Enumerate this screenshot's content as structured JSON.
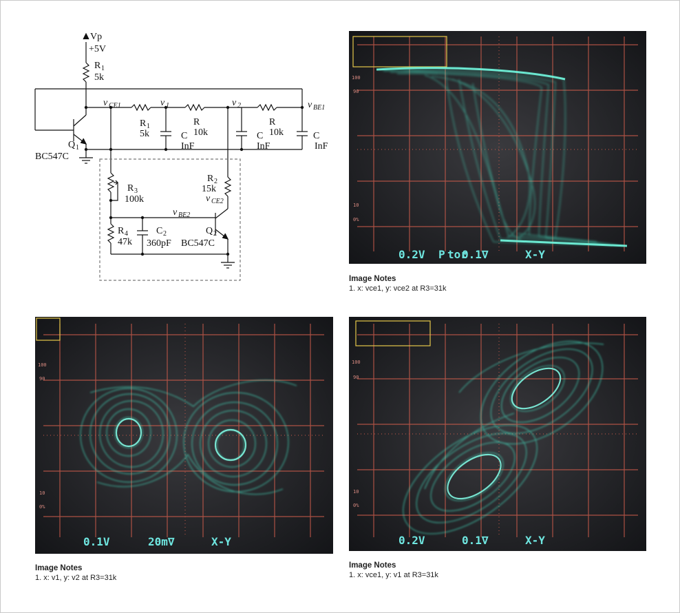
{
  "schematic": {
    "supply_label": "Vp",
    "supply_value": "+5V",
    "r1_top": {
      "name": "R",
      "sub": "1",
      "value": "5k"
    },
    "r1_mid": {
      "name": "R",
      "sub": "1",
      "value": "5k"
    },
    "r_a": {
      "name": "R",
      "value": "10k"
    },
    "r_b": {
      "name": "R",
      "value": "10k"
    },
    "r2": {
      "name": "R",
      "sub": "2",
      "value": "15k"
    },
    "r3": {
      "name": "R",
      "sub": "3",
      "value": "100k"
    },
    "r4": {
      "name": "R",
      "sub": "4",
      "value": "47k"
    },
    "c2": {
      "name": "C",
      "sub": "2",
      "value": "360pF"
    },
    "cap_letter": "C",
    "cap_value": "InF",
    "q1": {
      "name": "Q",
      "sub": "1",
      "part": "BC547C"
    },
    "q2": {
      "name": "Q",
      "sub": "2",
      "part": "BC547C"
    },
    "nodes": {
      "vce1": "CE1",
      "v1": "1",
      "v2": "2",
      "vbe1": "BE1",
      "vbe2": "BE2",
      "vce2": "CE2",
      "v": "v"
    }
  },
  "scopes": [
    {
      "id": "scope-vce1-vce2",
      "readout": [
        "0.2V",
        "0.1∇",
        "X-Y"
      ],
      "readout_mid_prefix": "P",
      "readout_mid_prefix_sub": "tor",
      "trace_color": "#45e3c4",
      "notes_title": "Image Notes",
      "notes_text": "1. x: vce1, y: vce2 at R3=31k"
    },
    {
      "id": "scope-v1-v2",
      "readout": [
        "0.1V",
        "20m∇",
        "X-Y"
      ],
      "trace_color": "#45e3c4",
      "notes_title": "Image Notes",
      "notes_text": "1. x: v1, y: v2 at R3=31k"
    },
    {
      "id": "scope-vce1-v1",
      "readout": [
        "0.2V",
        "0.1∇",
        "X-Y"
      ],
      "trace_color": "#45e3c4",
      "notes_title": "Image Notes",
      "notes_text": "1. x: vce1, y: v1 at R3=31k"
    }
  ],
  "colors": {
    "grid": "#c55a4a",
    "screen": "#1e2228",
    "trace": "#45e3c4",
    "marker": "#e6c84a"
  }
}
